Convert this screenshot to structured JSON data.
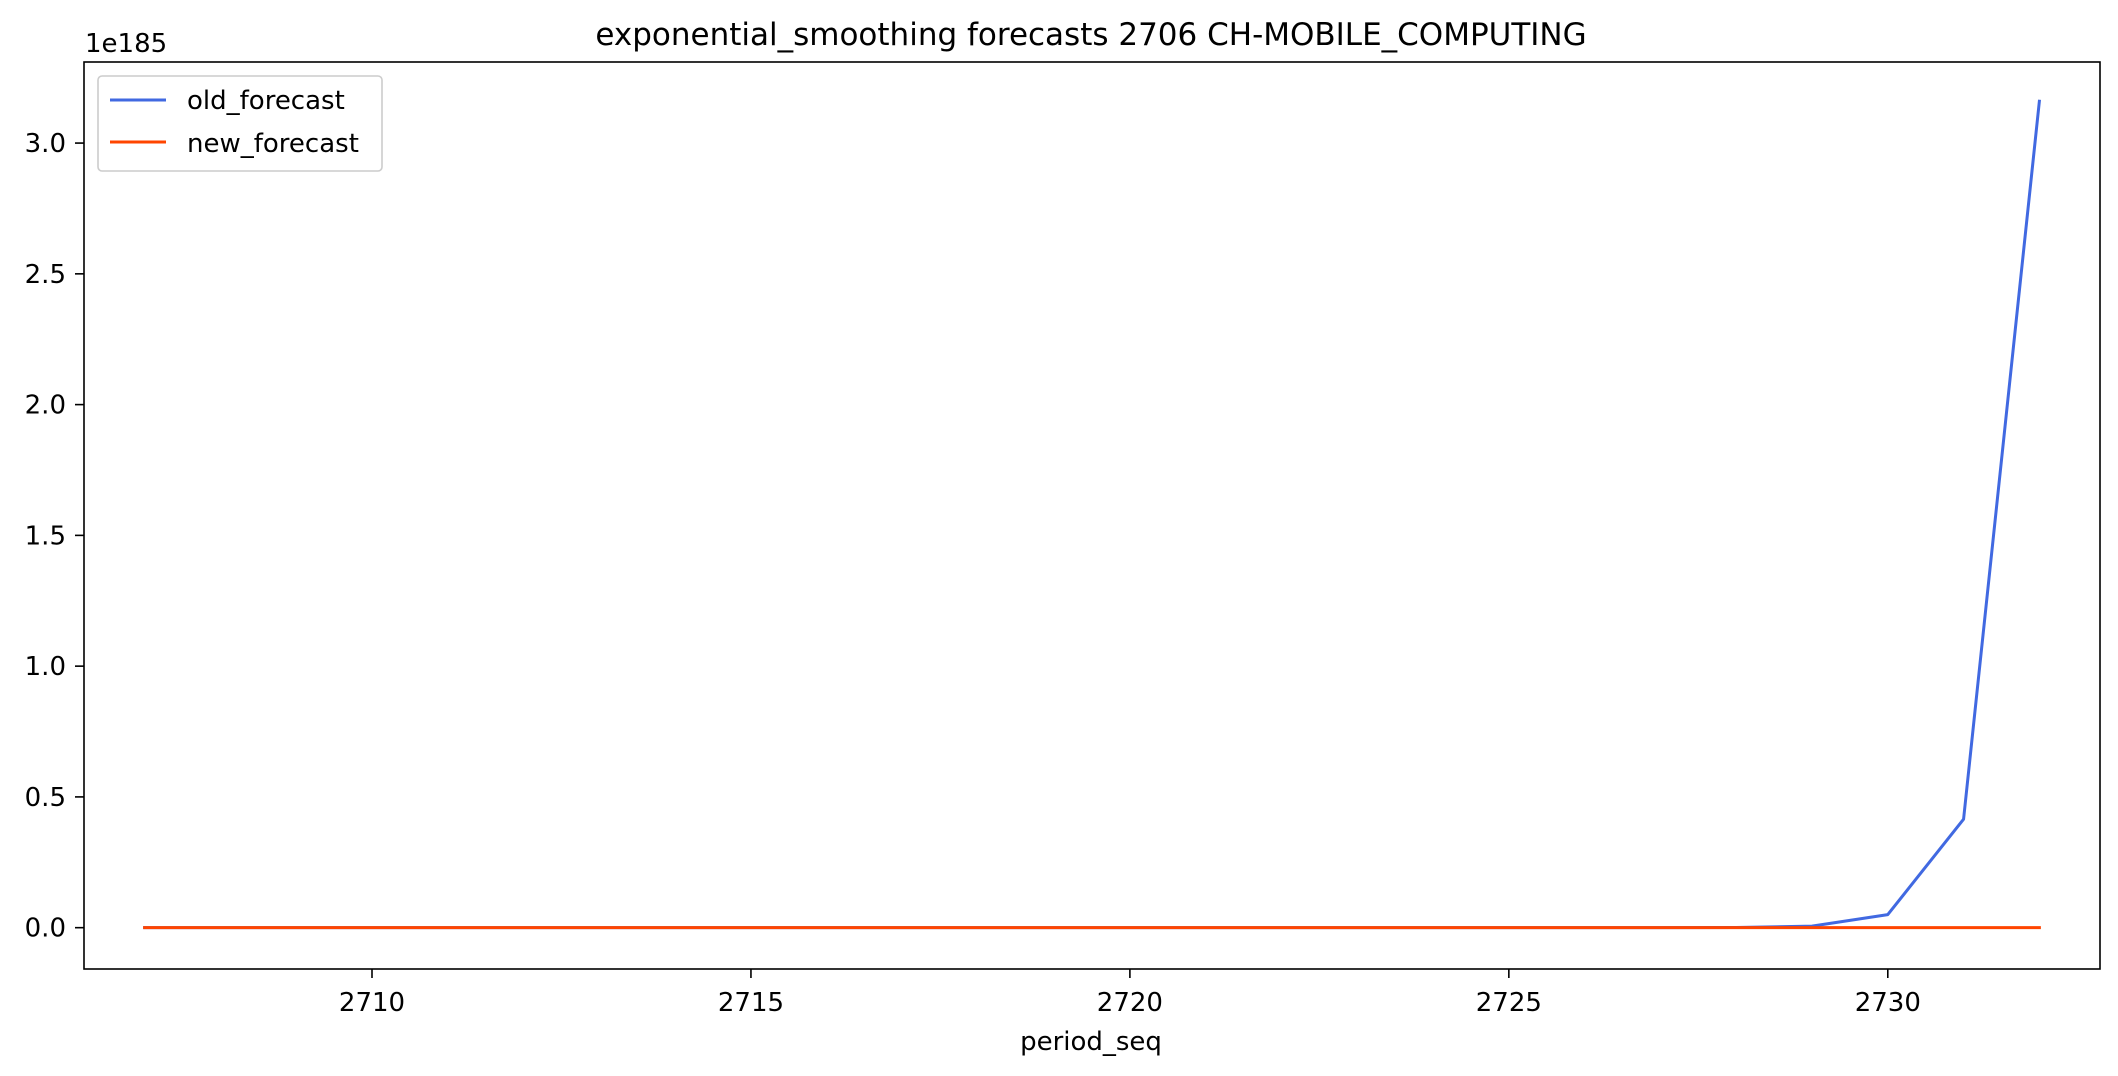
{
  "chart_data": {
    "type": "line",
    "title": "exponential_smoothing forecasts 2706 CH-MOBILE_COMPUTING",
    "xlabel": "period_seq",
    "ylabel": "",
    "y_offset_label": "1e185",
    "xlim": [
      2706.2,
      2732.8
    ],
    "ylim": [
      -0.158,
      3.31
    ],
    "y_scale_note": "values in units of 1e185",
    "x_ticks": [
      2710,
      2715,
      2720,
      2725,
      2730
    ],
    "x_tick_labels": [
      "2710",
      "2715",
      "2720",
      "2725",
      "2730"
    ],
    "y_ticks": [
      0.0,
      0.5,
      1.0,
      1.5,
      2.0,
      2.5,
      3.0
    ],
    "y_tick_labels": [
      "0.0",
      "0.5",
      "1.0",
      "1.5",
      "2.0",
      "2.5",
      "3.0"
    ],
    "x": [
      2707,
      2708,
      2709,
      2710,
      2711,
      2712,
      2713,
      2714,
      2715,
      2716,
      2717,
      2718,
      2719,
      2720,
      2721,
      2722,
      2723,
      2724,
      2725,
      2726,
      2727,
      2728,
      2729,
      2730,
      2731,
      2732
    ],
    "series": [
      {
        "name": "old_forecast",
        "color": "#4169e1",
        "values": [
          0,
          0,
          0,
          0,
          0,
          0,
          0,
          0,
          0,
          0,
          0,
          0,
          0,
          0,
          0,
          0,
          0,
          0,
          0,
          0,
          0,
          0.0006,
          0.006,
          0.05,
          0.415,
          3.16
        ]
      },
      {
        "name": "new_forecast",
        "color": "#ff4500",
        "values": [
          0,
          0,
          0,
          0,
          0,
          0,
          0,
          0,
          0,
          0,
          0,
          0,
          0,
          0,
          0,
          0,
          0,
          0,
          0,
          0,
          0,
          0,
          0,
          0,
          0,
          0
        ]
      }
    ],
    "grid": false,
    "legend_position": "top-left"
  }
}
